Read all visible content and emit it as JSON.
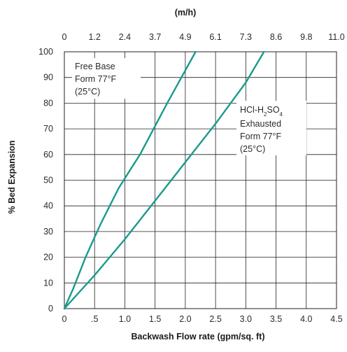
{
  "chart_data": {
    "type": "line",
    "title": "",
    "top_axis_title": "(m/h)",
    "top_axis_ticks": [
      "0",
      "1.2",
      "2.4",
      "3.7",
      "4.9",
      "6.1",
      "7.3",
      "8.6",
      "9.8",
      "11.0"
    ],
    "xlabel": "Backwash Flow rate (gpm/sq. ft)",
    "ylabel": "% Bed Expansion",
    "x_ticks": [
      {
        "value": 0,
        "label": "0"
      },
      {
        "value": 0.5,
        "label": ".5"
      },
      {
        "value": 1.0,
        "label": "1.0"
      },
      {
        "value": 1.5,
        "label": "1.5"
      },
      {
        "value": 2.0,
        "label": "2.0"
      },
      {
        "value": 2.5,
        "label": "2.5"
      },
      {
        "value": 3.0,
        "label": "3.0"
      },
      {
        "value": 3.5,
        "label": "3.5"
      },
      {
        "value": 4.0,
        "label": "4.0"
      },
      {
        "value": 4.5,
        "label": "4.5"
      }
    ],
    "y_ticks": [
      0,
      10,
      20,
      30,
      40,
      50,
      60,
      70,
      80,
      90,
      100
    ],
    "xlim": [
      0,
      4.5
    ],
    "ylim": [
      0,
      100
    ],
    "grid": true,
    "series": [
      {
        "name_lines": [
          "Free Base",
          "Form 77°F",
          "(25°C)"
        ],
        "color": "#1a9a8c",
        "x": [
          0,
          0.15,
          0.35,
          0.6,
          0.9,
          1.25,
          1.7,
          2.17
        ],
        "y": [
          0,
          8,
          20,
          33,
          47,
          60,
          80,
          100
        ]
      },
      {
        "name_lines": [
          "HCl-H2SO4",
          "Exhausted",
          "Form 77°F",
          "(25°C)"
        ],
        "color": "#1a9a8c",
        "x": [
          0,
          0.5,
          1.0,
          1.5,
          2.0,
          2.5,
          3.0,
          3.3
        ],
        "y": [
          0,
          13,
          27,
          42,
          57,
          72,
          88,
          100
        ]
      }
    ]
  }
}
